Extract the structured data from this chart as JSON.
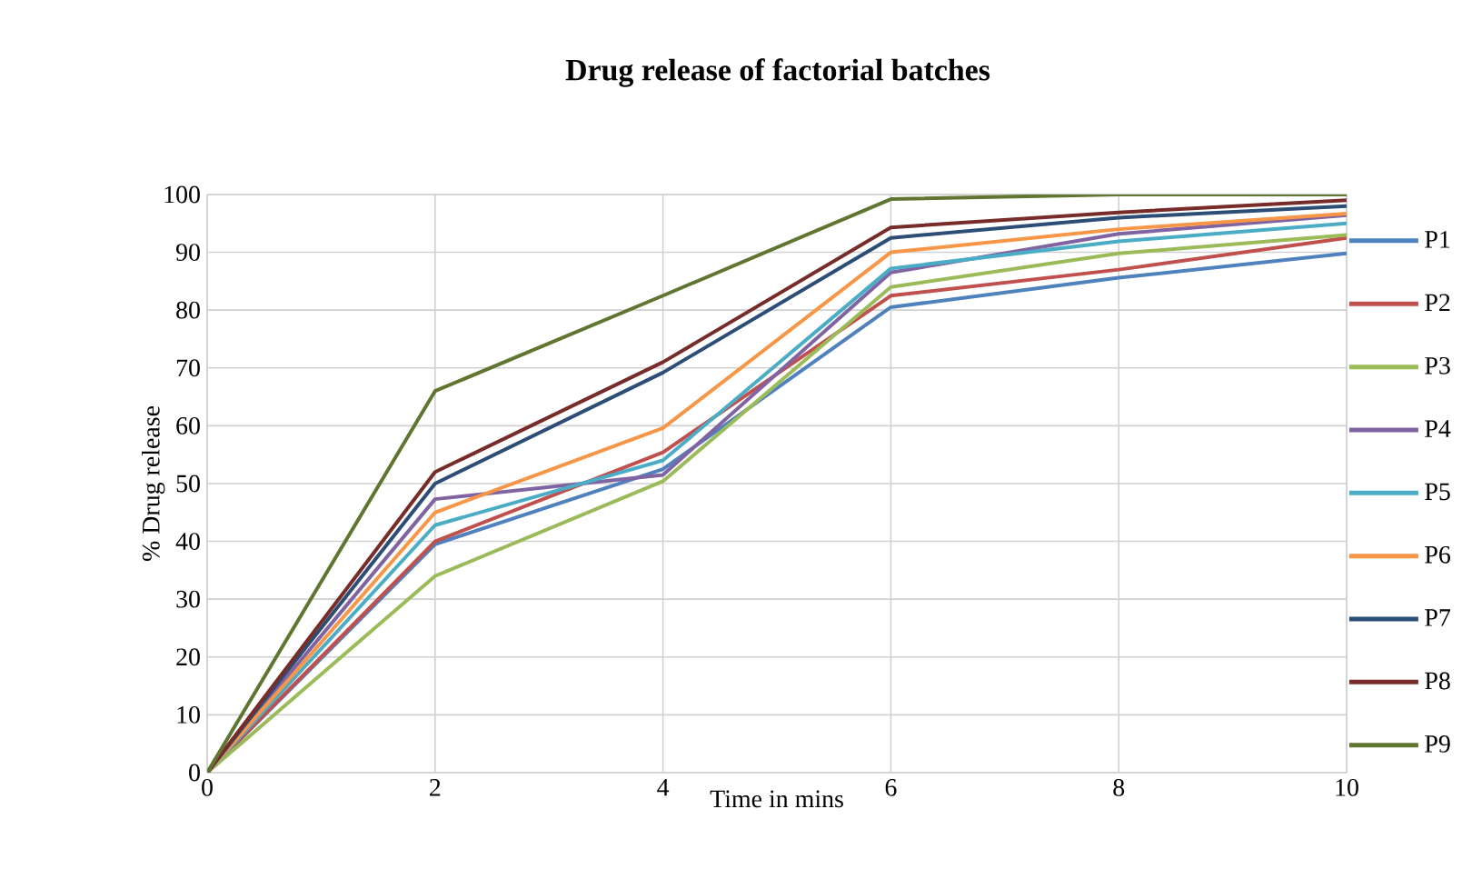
{
  "chart_data": {
    "type": "line",
    "title": "Drug release of factorial batches",
    "xlabel": "Time in mins",
    "ylabel": "% Drug release",
    "x": [
      0,
      2,
      4,
      6,
      8,
      10
    ],
    "xlim": [
      0,
      10
    ],
    "xticks": [
      0,
      2,
      4,
      6,
      8,
      10
    ],
    "ylim": [
      0,
      100
    ],
    "yticks": [
      0,
      10,
      20,
      30,
      40,
      50,
      60,
      70,
      80,
      90,
      100
    ],
    "grid": true,
    "legend": "right",
    "marker": "none",
    "line_style": "solid",
    "series": [
      {
        "name": "P1",
        "color": "#4f81bd",
        "values": [
          0,
          39.5,
          52.5,
          80.5,
          85.6,
          89.8
        ]
      },
      {
        "name": "P2",
        "color": "#c0504d",
        "values": [
          0,
          40,
          55.4,
          82.5,
          87,
          92.5
        ]
      },
      {
        "name": "P3",
        "color": "#9bbb59",
        "values": [
          0,
          34,
          50.4,
          84,
          89.8,
          93
        ]
      },
      {
        "name": "P4",
        "color": "#8064a2",
        "values": [
          0,
          47.3,
          51.5,
          86.5,
          93.2,
          96.4
        ]
      },
      {
        "name": "P5",
        "color": "#4bacc6",
        "values": [
          0,
          42.8,
          54,
          87.2,
          91.9,
          95
        ]
      },
      {
        "name": "P6",
        "color": "#f79646",
        "values": [
          0,
          45,
          59.6,
          90,
          94,
          96.7
        ]
      },
      {
        "name": "P7",
        "color": "#2c4d75",
        "values": [
          0,
          50,
          69.2,
          92.5,
          96,
          98
        ]
      },
      {
        "name": "P8",
        "color": "#772c2a",
        "values": [
          0,
          52,
          71,
          94.3,
          96.9,
          99
        ]
      },
      {
        "name": "P9",
        "color": "#5f7530",
        "values": [
          0,
          66,
          82.5,
          99.2,
          100,
          100
        ]
      }
    ]
  }
}
